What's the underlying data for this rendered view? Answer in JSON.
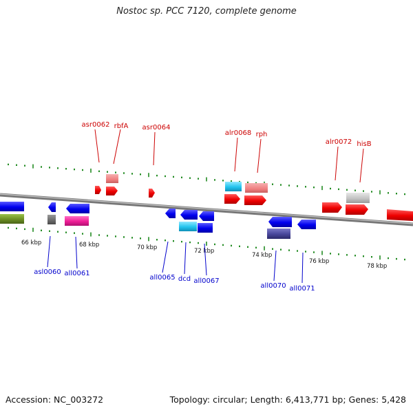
{
  "title": "Nostoc sp. PCC 7120, complete genome",
  "footer": {
    "accession": "Accession: NC_003272",
    "summary": "Topology: circular; Length: 6,413,771 bp; Genes: 5,428"
  },
  "colors": {
    "forward_label": "#cc0000",
    "reverse_label": "#0000cc",
    "tick": "#228b22",
    "backbone": "#888888"
  },
  "scale_labels": [
    "66 kbp",
    "68 kbp",
    "70 kbp",
    "72 kbp",
    "74 kbp",
    "76 kbp",
    "78 kbp"
  ],
  "forward_genes": [
    {
      "name": "asr0062"
    },
    {
      "name": "rbfA"
    },
    {
      "name": "asr0064"
    },
    {
      "name": "alr0068"
    },
    {
      "name": "rph"
    },
    {
      "name": "alr0072"
    },
    {
      "name": "hisB"
    }
  ],
  "reverse_genes": [
    {
      "name": "asl0060"
    },
    {
      "name": "all0061"
    },
    {
      "name": "all0065"
    },
    {
      "name": "dcd"
    },
    {
      "name": "all0067"
    },
    {
      "name": "all0070"
    },
    {
      "name": "all0071"
    }
  ]
}
